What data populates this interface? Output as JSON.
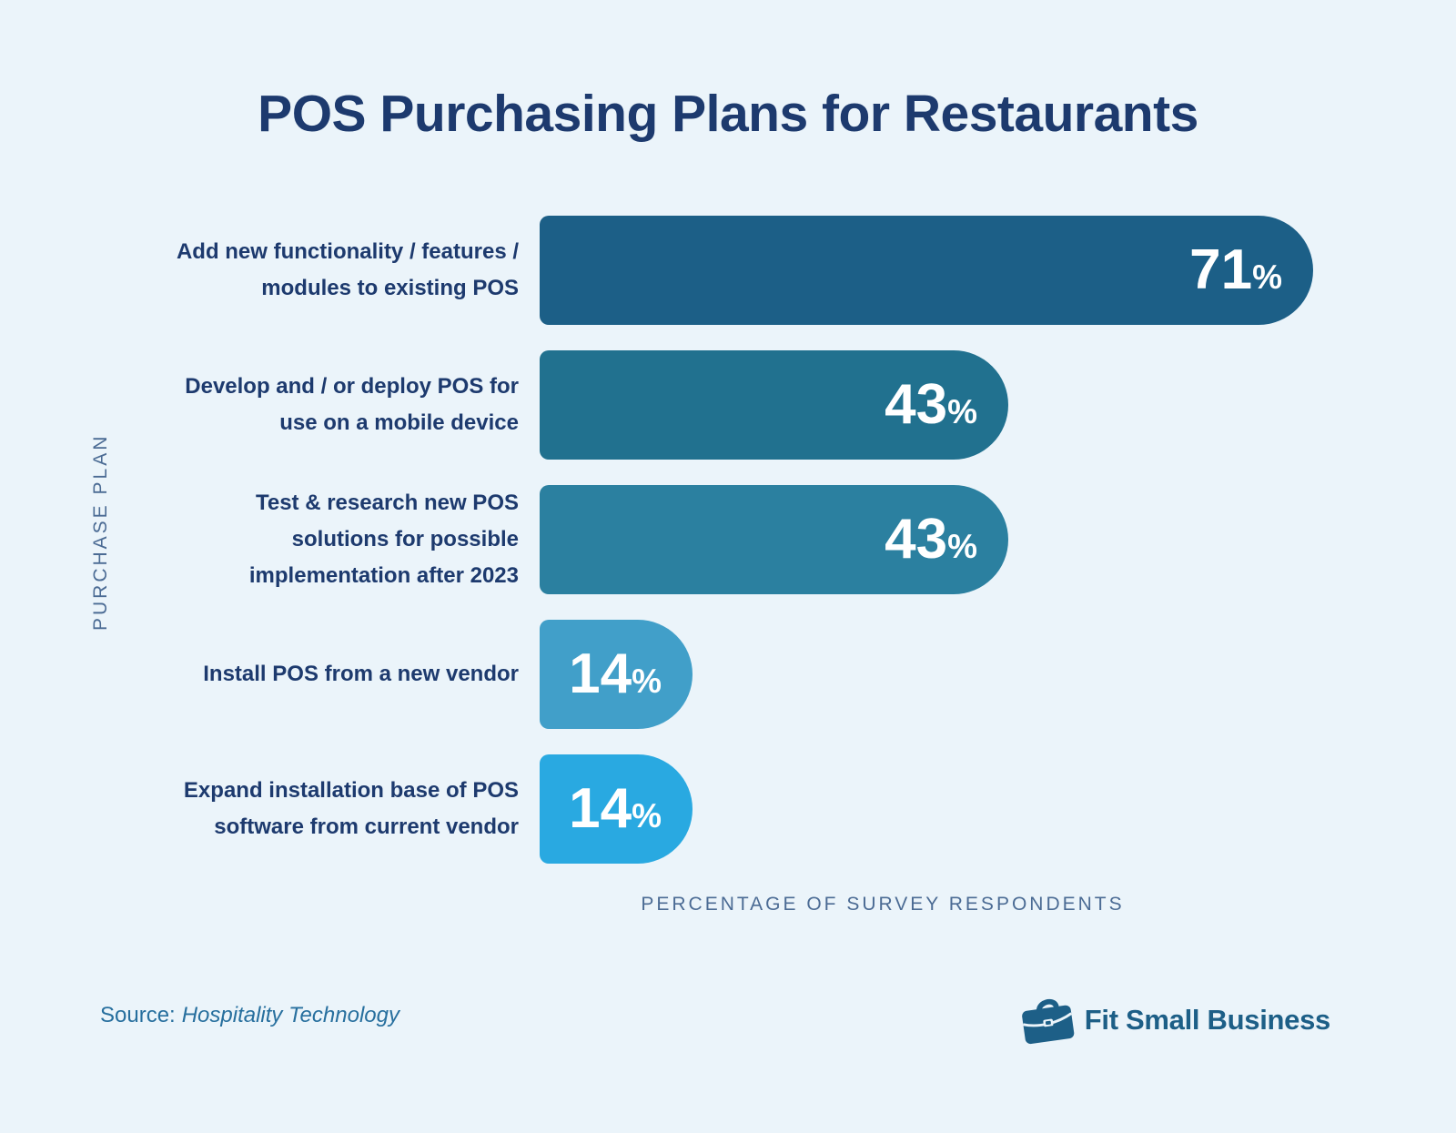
{
  "title": "POS Purchasing Plans for Restaurants",
  "chart_data": {
    "type": "bar",
    "orientation": "horizontal",
    "title": "POS Purchasing Plans for Restaurants",
    "categories": [
      "Add new functionality / features / modules to existing POS",
      "Develop and / or deploy POS for use on a mobile device",
      "Test & research new POS solutions for possible implementation after 2023",
      "Install POS from a new vendor",
      "Expand installation base of POS software from current vendor"
    ],
    "values": [
      71,
      43,
      43,
      14,
      14
    ],
    "values_text": [
      "71",
      "43",
      "43",
      "14",
      "14"
    ],
    "percent_sign": "%",
    "bar_colors": [
      "#1C5F87",
      "#21718F",
      "#2B80A0",
      "#419FC9",
      "#29A9E1"
    ],
    "xlabel": "PERCENTAGE OF SURVEY RESPONDENTS",
    "ylabel": "PURCHASE PLAN",
    "xmax": 71,
    "xlim": [
      0,
      71
    ],
    "grid": false,
    "legend": false,
    "data_labels": "inside-end, white, bold"
  },
  "source": {
    "prefix": "Source:",
    "name": "Hospitality Technology"
  },
  "footer_logo": {
    "icon": "briefcase-icon",
    "text": "Fit Small Business"
  },
  "colors": {
    "background": "#EBF4FA",
    "title_text": "#1D3A6E",
    "category_label_text": "#1D3A6E",
    "axis_label_text": "#4B6B94",
    "value_label_text": "#FFFFFF",
    "source_text": "#276F9E",
    "logo": "#1D5F87"
  }
}
